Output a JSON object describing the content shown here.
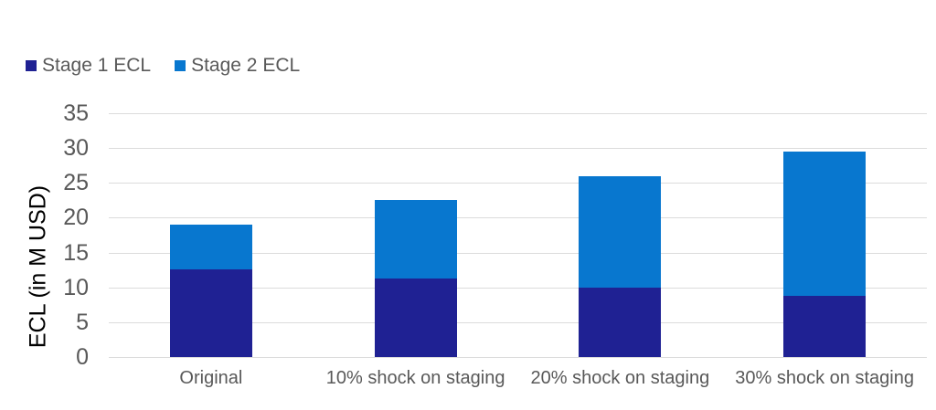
{
  "chart_data": {
    "type": "bar",
    "stacked": true,
    "categories": [
      "Original",
      "10% shock on staging",
      "20% shock on staging",
      "30% shock on staging"
    ],
    "series": [
      {
        "name": "Stage 1 ECL",
        "color": "#1F2193",
        "values": [
          12.6,
          11.3,
          10.0,
          8.8
        ]
      },
      {
        "name": "Stage 2 ECL",
        "color": "#0877CF",
        "values": [
          6.4,
          11.2,
          16.0,
          20.7
        ]
      }
    ],
    "stack_totals": [
      19.0,
      22.5,
      26.0,
      29.5
    ],
    "title": "",
    "xlabel": "",
    "ylabel": "ECL (in M USD)",
    "ylim": [
      0,
      35
    ],
    "yticks": [
      0,
      5,
      10,
      15,
      20,
      25,
      30,
      35
    ],
    "grid": "horizontal",
    "legend_position": "top-left"
  },
  "colors": {
    "stage1": "#1F2193",
    "stage2": "#0877CF",
    "gridline": "#DCDCDC",
    "tick_text": "#595959",
    "axis_title_text": "#000000",
    "background": "#FFFFFF"
  }
}
